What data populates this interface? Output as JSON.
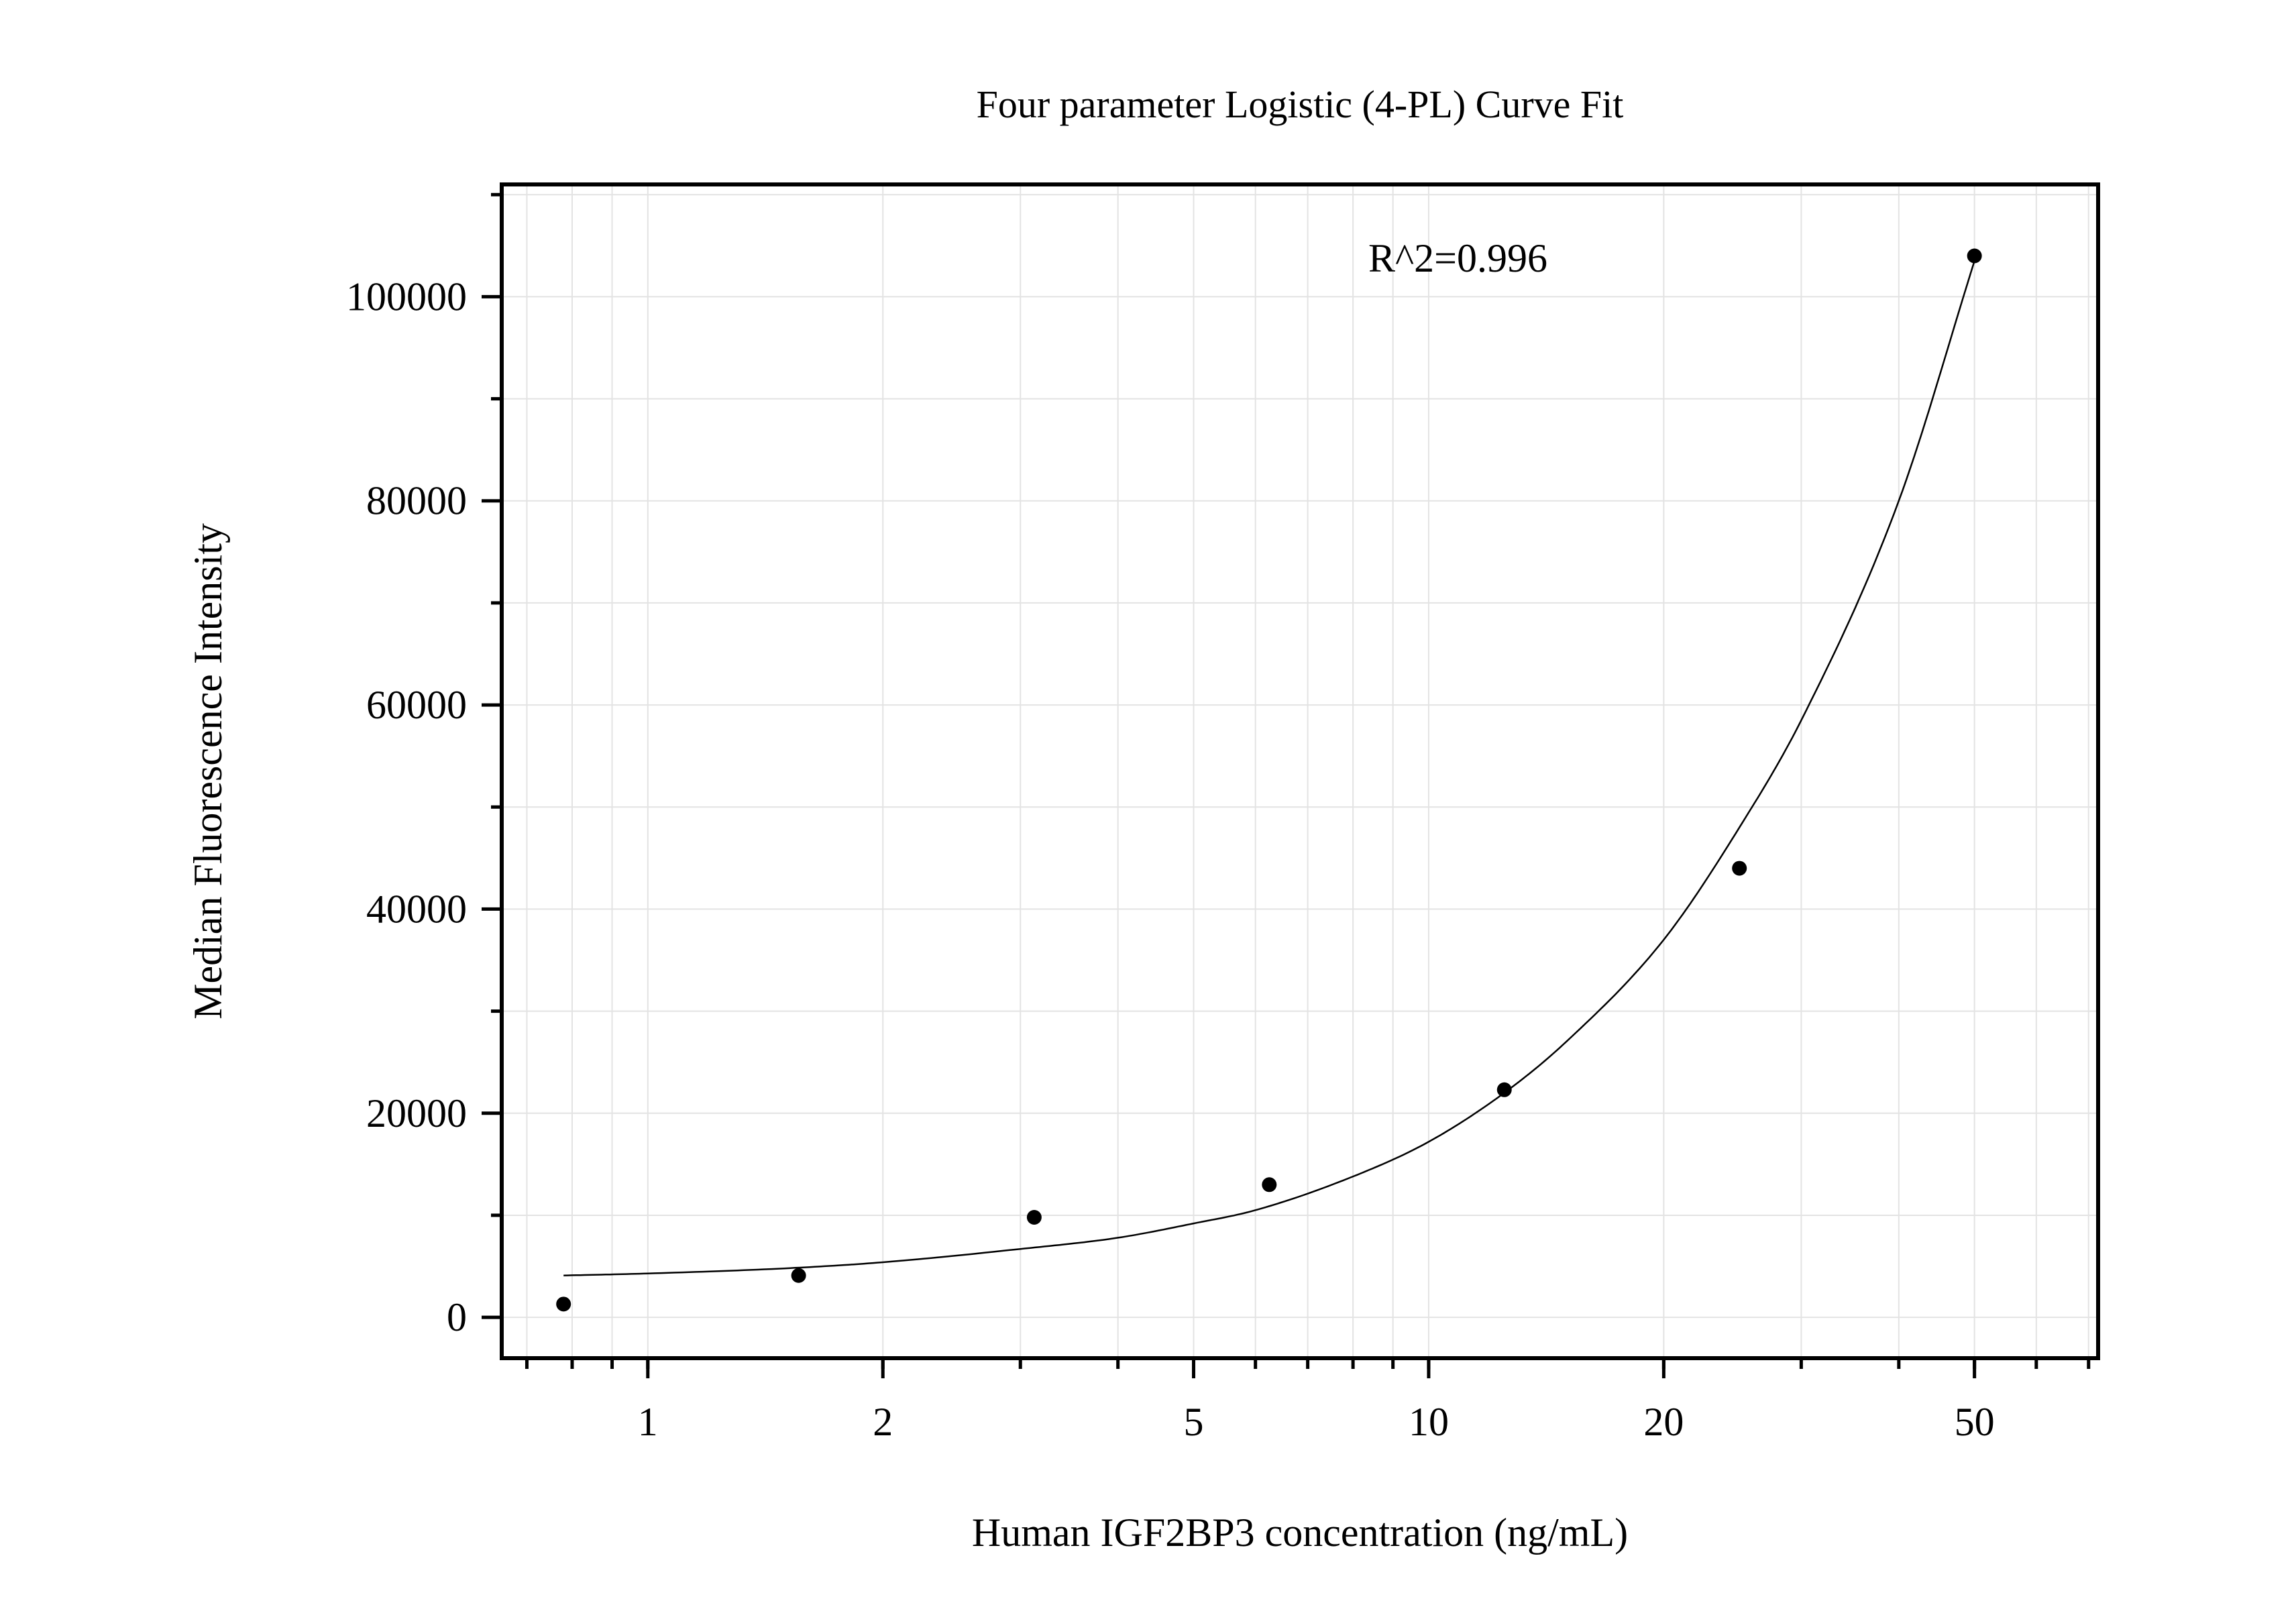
{
  "chart_data": {
    "type": "scatter",
    "title": "Four parameter Logistic (4-PL) Curve Fit",
    "xlabel": "Human IGF2BP3 concentration (ng/mL)",
    "ylabel": "Median Fluorescence Intensity",
    "x_scale": "log",
    "xlim": [
      0.65,
      72
    ],
    "ylim": [
      -4000,
      111000
    ],
    "x_ticks": [
      1,
      2,
      5,
      10,
      20,
      50
    ],
    "x_tick_labels": [
      "1",
      "2",
      "5",
      "10",
      "20",
      "50"
    ],
    "y_ticks": [
      0,
      20000,
      40000,
      60000,
      80000,
      100000
    ],
    "y_tick_labels": [
      "0",
      "20000",
      "40000",
      "60000",
      "80000",
      "100000"
    ],
    "grid": true,
    "annotation": "R^2=0.996",
    "series": [
      {
        "points": [
          {
            "x": 0.78,
            "y": 1300
          },
          {
            "x": 1.56,
            "y": 4100
          },
          {
            "x": 3.125,
            "y": 9800
          },
          {
            "x": 6.25,
            "y": 13000
          },
          {
            "x": 12.5,
            "y": 22300
          },
          {
            "x": 25,
            "y": 44000
          },
          {
            "x": 50,
            "y": 104000
          }
        ]
      }
    ],
    "fit_curve": {
      "x": [
        0.78,
        1,
        1.5,
        2,
        3,
        4,
        5,
        6,
        8,
        10,
        12.5,
        15,
        20,
        25,
        30,
        40,
        50
      ],
      "y": [
        4100,
        4300,
        4800,
        5400,
        6700,
        7800,
        9200,
        10500,
        13800,
        17200,
        22000,
        27000,
        37000,
        48000,
        58500,
        80000,
        103500
      ]
    }
  }
}
